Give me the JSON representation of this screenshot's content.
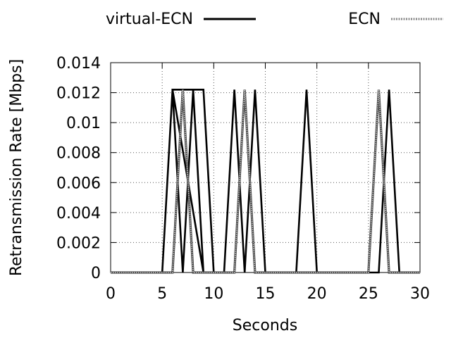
{
  "chart_data": {
    "type": "line",
    "title": "",
    "xlabel": "Seconds",
    "ylabel": "Retransmission Rate [Mbps]",
    "xlim": [
      0,
      30
    ],
    "ylim": [
      0,
      0.014
    ],
    "x_ticks": [
      "0",
      "5",
      "10",
      "15",
      "20",
      "25",
      "30"
    ],
    "y_ticks": [
      "0",
      "0.002",
      "0.004",
      "0.006",
      "0.008",
      "0.01",
      "0.012",
      "0.014"
    ],
    "grid": true,
    "legend_position": "top",
    "series": [
      {
        "name": "virtual-ECN",
        "color": "#000000",
        "style": "solid",
        "points": [
          [
            5,
            0
          ],
          [
            6,
            0.0122
          ],
          [
            7,
            0
          ],
          [
            8,
            0.0122
          ],
          [
            9,
            0
          ],
          [
            6,
            0.0122
          ],
          [
            9,
            0.0122
          ],
          [
            10,
            0
          ],
          [
            11,
            0
          ],
          [
            12,
            0.0122
          ],
          [
            13,
            0
          ],
          [
            14,
            0.0122
          ],
          [
            15,
            0
          ],
          [
            18,
            0
          ],
          [
            19,
            0.0122
          ],
          [
            20,
            0
          ],
          [
            26,
            0
          ],
          [
            27,
            0.0122
          ],
          [
            28,
            0
          ],
          [
            30,
            0
          ]
        ]
      },
      {
        "name": "ECN",
        "color": "#999999",
        "style": "dotted",
        "points": [
          [
            0,
            0
          ],
          [
            5,
            0
          ],
          [
            6,
            0
          ],
          [
            7,
            0.0122
          ],
          [
            8,
            0
          ],
          [
            12,
            0
          ],
          [
            13,
            0.0122
          ],
          [
            14,
            0
          ],
          [
            25,
            0
          ],
          [
            26,
            0.0122
          ],
          [
            27,
            0
          ],
          [
            30,
            0
          ]
        ]
      }
    ]
  }
}
